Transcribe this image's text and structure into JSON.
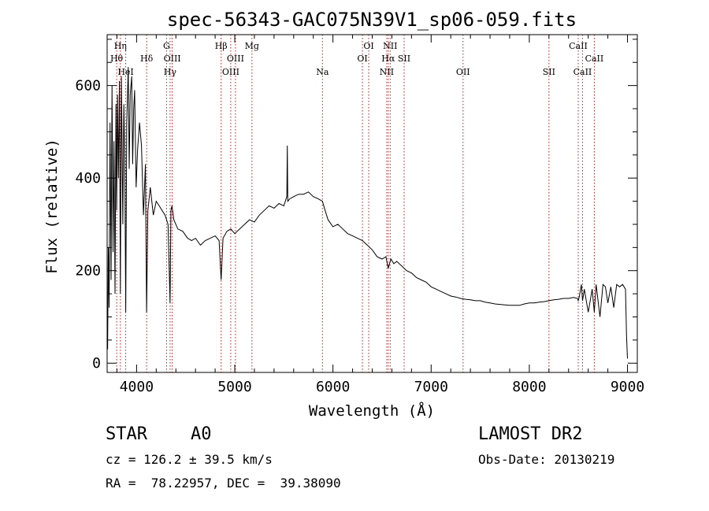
{
  "chart_data": {
    "type": "line",
    "title": "spec-56343-GAC075N39V1_sp06-059.fits",
    "xlabel": "Wavelength (Å)",
    "ylabel": "Flux (relative)",
    "xlim": [
      3700,
      9100
    ],
    "ylim": [
      -20,
      710
    ],
    "x_ticks": [
      4000,
      5000,
      6000,
      7000,
      8000,
      9000
    ],
    "y_ticks": [
      0,
      200,
      400,
      600
    ],
    "grid": false,
    "line_color": "#000000",
    "marker_color": "#b22222",
    "spectral_lines": [
      {
        "label": "Hη",
        "wavelength": 3835,
        "row": 0
      },
      {
        "label": "Hθ",
        "wavelength": 3797,
        "row": 1
      },
      {
        "label": "HeI",
        "wavelength": 3889,
        "row": 2
      },
      {
        "label": "Hδ",
        "wavelength": 4102,
        "row": 1
      },
      {
        "label": "G",
        "wavelength": 4305,
        "row": 0
      },
      {
        "label": "OIII",
        "wavelength": 4363,
        "row": 1
      },
      {
        "label": "Hγ",
        "wavelength": 4341,
        "row": 2
      },
      {
        "label": "Hβ",
        "wavelength": 4861,
        "row": 0
      },
      {
        "label": "OIII",
        "wavelength": 4959,
        "row": 2
      },
      {
        "label": "OIII",
        "wavelength": 5007,
        "row": 1
      },
      {
        "label": "Mg",
        "wavelength": 5175,
        "row": 0
      },
      {
        "label": "Na",
        "wavelength": 5893,
        "row": 2
      },
      {
        "label": "OI",
        "wavelength": 6300,
        "row": 1
      },
      {
        "label": "OI",
        "wavelength": 6364,
        "row": 0
      },
      {
        "label": "NII",
        "wavelength": 6548,
        "row": 2
      },
      {
        "label": "NII",
        "wavelength": 6583,
        "row": 0
      },
      {
        "label": "Hα",
        "wavelength": 6563,
        "row": 1
      },
      {
        "label": "SII",
        "wavelength": 6725,
        "row": 1
      },
      {
        "label": "OII",
        "wavelength": 7325,
        "row": 2
      },
      {
        "label": "SII",
        "wavelength": 8200,
        "row": 2
      },
      {
        "label": "CaII",
        "wavelength": 8498,
        "row": 0
      },
      {
        "label": "CaII",
        "wavelength": 8542,
        "row": 2
      },
      {
        "label": "CaII",
        "wavelength": 8662,
        "row": 1
      }
    ],
    "series": [
      {
        "x": [
          3705,
          3712,
          3720,
          3730,
          3740,
          3750,
          3760,
          3770,
          3780,
          3790,
          3797,
          3805,
          3815,
          3825,
          3835,
          3845,
          3860,
          3870,
          3880,
          3889,
          3900,
          3915,
          3925,
          3935,
          3950,
          3960,
          3970,
          3980,
          3995,
          4010,
          4030,
          4050,
          4070,
          4090,
          4102,
          4115,
          4140,
          4170,
          4200,
          4230,
          4260,
          4290,
          4320,
          4341,
          4350,
          4360,
          4380,
          4420,
          4470,
          4520,
          4560,
          4600,
          4650,
          4700,
          4750,
          4800,
          4840,
          4861,
          4880,
          4920,
          4960,
          5000,
          5050,
          5100,
          5150,
          5200,
          5250,
          5300,
          5350,
          5400,
          5450,
          5500,
          5530,
          5535,
          5540,
          5560,
          5600,
          5650,
          5700,
          5750,
          5800,
          5850,
          5893,
          5920,
          5950,
          6000,
          6050,
          6100,
          6150,
          6200,
          6250,
          6300,
          6350,
          6400,
          6450,
          6500,
          6540,
          6563,
          6590,
          6620,
          6650,
          6700,
          6750,
          6800,
          6850,
          6900,
          6950,
          7000,
          7050,
          7100,
          7150,
          7200,
          7250,
          7300,
          7350,
          7400,
          7450,
          7500,
          7550,
          7600,
          7650,
          7700,
          7750,
          7800,
          7850,
          7900,
          7950,
          8000,
          8050,
          8100,
          8150,
          8200,
          8250,
          8300,
          8350,
          8400,
          8450,
          8490,
          8498,
          8510,
          8530,
          8542,
          8560,
          8600,
          8640,
          8662,
          8680,
          8720,
          8750,
          8775,
          8800,
          8830,
          8860,
          8890,
          8920,
          8950,
          8980,
          8990,
          9000
        ],
        "y": [
          30,
          250,
          120,
          520,
          180,
          600,
          240,
          480,
          150,
          560,
          330,
          580,
          400,
          610,
          150,
          620,
          300,
          560,
          440,
          110,
          520,
          640,
          420,
          580,
          620,
          430,
          550,
          590,
          380,
          460,
          520,
          470,
          320,
          430,
          110,
          330,
          380,
          320,
          350,
          340,
          330,
          320,
          300,
          130,
          330,
          340,
          310,
          290,
          285,
          270,
          265,
          270,
          255,
          265,
          270,
          275,
          265,
          180,
          270,
          285,
          290,
          280,
          290,
          300,
          310,
          305,
          320,
          330,
          340,
          335,
          345,
          340,
          360,
          470,
          350,
          355,
          360,
          365,
          365,
          370,
          360,
          355,
          350,
          330,
          310,
          295,
          300,
          290,
          280,
          275,
          270,
          265,
          255,
          245,
          230,
          225,
          230,
          205,
          225,
          215,
          220,
          210,
          200,
          195,
          185,
          180,
          175,
          165,
          160,
          155,
          150,
          145,
          143,
          140,
          138,
          137,
          135,
          135,
          132,
          130,
          128,
          127,
          126,
          125,
          125,
          125,
          128,
          130,
          130,
          132,
          133,
          135,
          137,
          138,
          140,
          140,
          142,
          140,
          135,
          145,
          170,
          135,
          160,
          110,
          160,
          110,
          170,
          100,
          170,
          165,
          130,
          165,
          120,
          170,
          165,
          170,
          160,
          60,
          10
        ]
      }
    ]
  },
  "info": {
    "object_class": "STAR",
    "subclass": "A0",
    "survey": "LAMOST DR2",
    "redshift_line": "cz = 126.2 ± 39.5 km/s",
    "obs_date_line": "Obs-Date: 20130219",
    "coords_line": "RA =  78.22957, DEC =  39.38090"
  }
}
